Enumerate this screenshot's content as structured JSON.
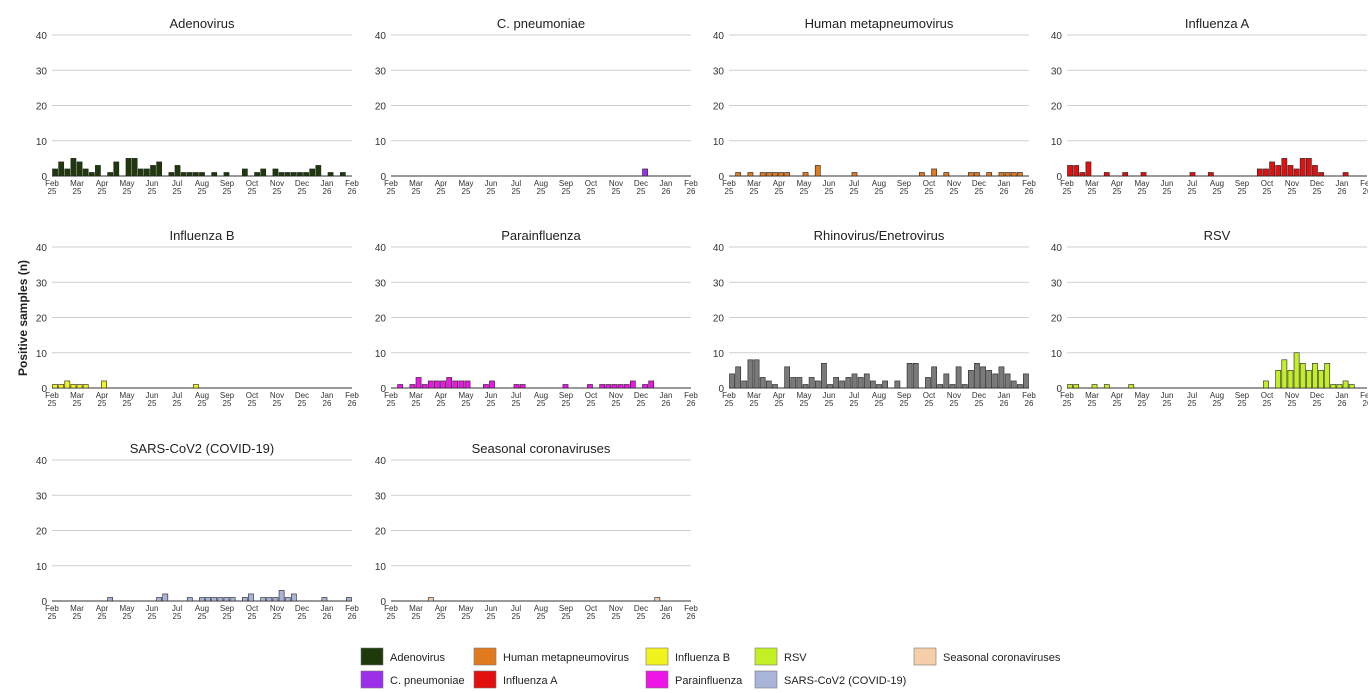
{
  "figure": {
    "ylabel": "Positive samples (n)"
  },
  "chart_data": {
    "type": "bar",
    "ylim": [
      0,
      40
    ],
    "yticks": [
      0,
      10,
      20,
      30,
      40
    ],
    "grid": true,
    "legend_position": "bottom",
    "xtick_labels": [
      [
        "Feb",
        "25"
      ],
      [
        "Mar",
        "25"
      ],
      [
        "Apr",
        "25"
      ],
      [
        "May",
        "25"
      ],
      [
        "Jun",
        "25"
      ],
      [
        "Jul",
        "25"
      ],
      [
        "Aug",
        "25"
      ],
      [
        "Sep",
        "25"
      ],
      [
        "Oct",
        "25"
      ],
      [
        "Nov",
        "25"
      ],
      [
        "Dec",
        "25"
      ],
      [
        "Jan",
        "26"
      ],
      [
        "Feb",
        "26"
      ]
    ],
    "panels": [
      {
        "name": "Adenovirus",
        "color": "#1f3a0a",
        "values": [
          2,
          4,
          2,
          5,
          4,
          2,
          1,
          3,
          0,
          1,
          4,
          0,
          5,
          5,
          2,
          2,
          3,
          4,
          0,
          1,
          3,
          1,
          1,
          1,
          1,
          0,
          1,
          0,
          1,
          0,
          0,
          2,
          0,
          1,
          2,
          0,
          2,
          1,
          1,
          1,
          1,
          1,
          2,
          3,
          0,
          1,
          0,
          1,
          0
        ]
      },
      {
        "name": "C. pneumoniae",
        "color": "#9b30e8",
        "values": [
          0,
          0,
          0,
          0,
          0,
          0,
          0,
          0,
          0,
          0,
          0,
          0,
          0,
          0,
          0,
          0,
          0,
          0,
          0,
          0,
          0,
          0,
          0,
          0,
          0,
          0,
          0,
          0,
          0,
          0,
          0,
          0,
          0,
          0,
          0,
          0,
          0,
          0,
          0,
          0,
          0,
          2,
          0,
          0,
          0,
          0,
          0,
          0,
          0
        ]
      },
      {
        "name": "Human metapneumovirus",
        "color": "#e07a1f",
        "values": [
          0,
          1,
          0,
          1,
          0,
          1,
          1,
          1,
          1,
          1,
          0,
          0,
          1,
          0,
          3,
          0,
          0,
          0,
          0,
          0,
          1,
          0,
          0,
          0,
          0,
          0,
          0,
          0,
          0,
          0,
          0,
          1,
          0,
          2,
          0,
          1,
          0,
          0,
          0,
          1,
          1,
          0,
          1,
          0,
          1,
          1,
          1,
          1,
          0
        ]
      },
      {
        "name": "Influenza A",
        "color": "#e31010",
        "values": [
          3,
          3,
          1,
          4,
          0,
          0,
          1,
          0,
          0,
          1,
          0,
          0,
          1,
          0,
          0,
          0,
          0,
          0,
          0,
          0,
          1,
          0,
          0,
          1,
          0,
          0,
          0,
          0,
          0,
          0,
          0,
          2,
          2,
          4,
          3,
          5,
          3,
          2,
          5,
          5,
          3,
          1,
          0,
          0,
          0,
          1,
          0,
          0,
          0
        ]
      },
      {
        "name": "Influenza B",
        "color": "#f2f21e",
        "values": [
          1,
          1,
          2,
          1,
          1,
          1,
          0,
          0,
          2,
          0,
          0,
          0,
          0,
          0,
          0,
          0,
          0,
          0,
          0,
          0,
          0,
          0,
          0,
          1,
          0,
          0,
          0,
          0,
          0,
          0,
          0,
          0,
          0,
          0,
          0,
          0,
          0,
          0,
          0,
          0,
          0,
          0,
          0,
          0,
          0,
          0,
          0,
          0,
          0
        ]
      },
      {
        "name": "Parainfluenza",
        "color": "#ee16e6",
        "values": [
          0,
          1,
          0,
          1,
          3,
          1,
          2,
          2,
          2,
          3,
          2,
          2,
          2,
          0,
          0,
          1,
          2,
          0,
          0,
          0,
          1,
          1,
          0,
          0,
          0,
          0,
          0,
          0,
          1,
          0,
          0,
          0,
          1,
          0,
          1,
          1,
          1,
          1,
          1,
          2,
          0,
          1,
          2,
          0,
          0,
          0,
          0,
          0,
          0
        ]
      },
      {
        "name": "Rhinovirus/Enetrovirus",
        "color": "#7a7a7a",
        "values": [
          4,
          6,
          2,
          8,
          8,
          3,
          2,
          1,
          0,
          6,
          3,
          3,
          1,
          3,
          2,
          7,
          1,
          3,
          2,
          3,
          4,
          3,
          4,
          2,
          1,
          2,
          0,
          2,
          0,
          7,
          7,
          0,
          3,
          6,
          1,
          4,
          1,
          6,
          1,
          5,
          7,
          6,
          5,
          4,
          6,
          4,
          2,
          1,
          4
        ]
      },
      {
        "name": "RSV",
        "color": "#c2f024",
        "values": [
          1,
          1,
          0,
          0,
          1,
          0,
          1,
          0,
          0,
          0,
          1,
          0,
          0,
          0,
          0,
          0,
          0,
          0,
          0,
          0,
          0,
          0,
          0,
          0,
          0,
          0,
          0,
          0,
          0,
          0,
          0,
          0,
          2,
          0,
          5,
          8,
          5,
          10,
          7,
          5,
          7,
          5,
          7,
          1,
          1,
          2,
          1,
          0,
          0
        ]
      },
      {
        "name": "SARS-CoV2 (COVID-19)",
        "color": "#a9b5d8",
        "values": [
          0,
          0,
          0,
          0,
          0,
          0,
          0,
          0,
          0,
          1,
          0,
          0,
          0,
          0,
          0,
          0,
          0,
          1,
          2,
          0,
          0,
          0,
          1,
          0,
          1,
          1,
          1,
          1,
          1,
          1,
          0,
          1,
          2,
          0,
          1,
          1,
          1,
          3,
          1,
          2,
          0,
          0,
          0,
          0,
          1,
          0,
          0,
          0,
          1
        ]
      },
      {
        "name": "Seasonal coronaviruses",
        "color": "#f5cfaa",
        "values": [
          0,
          0,
          0,
          0,
          0,
          0,
          1,
          0,
          0,
          0,
          0,
          0,
          0,
          0,
          0,
          0,
          0,
          0,
          0,
          0,
          0,
          0,
          0,
          0,
          0,
          0,
          0,
          0,
          0,
          0,
          0,
          0,
          0,
          0,
          0,
          0,
          0,
          0,
          0,
          0,
          0,
          0,
          0,
          1,
          0,
          0,
          0,
          0,
          0
        ]
      }
    ],
    "legend": [
      {
        "label": "Adenovirus",
        "color": "#1f3a0a"
      },
      {
        "label": "Human metapneumovirus",
        "color": "#e07a1f"
      },
      {
        "label": "Influenza B",
        "color": "#f2f21e"
      },
      {
        "label": "RSV",
        "color": "#c2f024"
      },
      {
        "label": "Seasonal coronaviruses",
        "color": "#f5cfaa"
      },
      {
        "label": "C. pneumoniae",
        "color": "#9b30e8"
      },
      {
        "label": "Influenza A",
        "color": "#e31010"
      },
      {
        "label": "Parainfluenza",
        "color": "#ee16e6"
      },
      {
        "label": "SARS-CoV2 (COVID-19)",
        "color": "#a9b5d8"
      }
    ]
  }
}
